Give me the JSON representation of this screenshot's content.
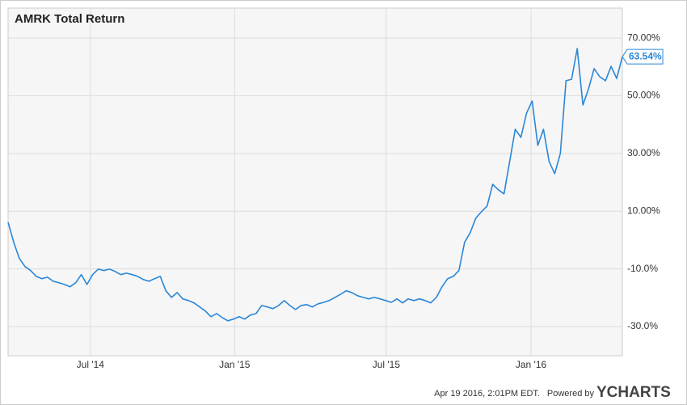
{
  "chart_data": {
    "type": "line",
    "title": "AMRK Total Return",
    "values": [
      6.2,
      -0.8,
      -6.4,
      -9.2,
      -10.6,
      -12.6,
      -13.4,
      -12.9,
      -14.3,
      -14.8,
      -15.4,
      -16.2,
      -14.8,
      -12,
      -15.4,
      -12,
      -10.1,
      -10.6,
      -10.1,
      -10.9,
      -12,
      -11.5,
      -12,
      -12.6,
      -13.7,
      -14.3,
      -13.4,
      -12.6,
      -17.6,
      -19.9,
      -18.2,
      -20.4,
      -21,
      -21.8,
      -23.2,
      -24.6,
      -26.6,
      -25.5,
      -26.9,
      -28,
      -27.4,
      -26.6,
      -27.4,
      -26,
      -25.5,
      -22.7,
      -23.2,
      -23.8,
      -22.7,
      -21,
      -22.7,
      -24.1,
      -22.7,
      -22.4,
      -23.2,
      -22.1,
      -21.6,
      -21,
      -19.9,
      -18.8,
      -17.6,
      -18.2,
      -19.3,
      -19.9,
      -20.4,
      -19.9,
      -20.4,
      -21,
      -21.6,
      -20.4,
      -21.8,
      -20.4,
      -21,
      -20.4,
      -21,
      -21.8,
      -19.9,
      -16.2,
      -13.4,
      -12.6,
      -10.6,
      -0.8,
      2.5,
      7.6,
      9.8,
      11.8,
      19.3,
      17.4,
      16,
      27.2,
      38.4,
      35.6,
      44,
      48.2,
      32.8,
      38.4,
      27.2,
      23,
      30,
      55.2,
      55.7,
      66.4,
      46.8,
      52.4,
      59.4,
      56.6,
      55.2,
      60.2,
      56,
      63.54
    ],
    "value_labels": [
      null,
      null,
      null,
      null,
      null,
      null,
      null,
      null,
      null,
      null,
      null,
      null,
      null,
      null,
      null,
      null,
      null,
      null,
      null,
      null,
      null,
      null,
      null,
      null,
      null,
      null,
      null,
      null,
      null,
      null,
      null,
      null,
      null,
      null,
      null,
      null,
      null,
      null,
      null,
      null,
      null,
      null,
      null,
      null,
      null,
      null,
      null,
      null,
      null,
      null,
      null,
      null,
      null,
      null,
      null,
      null,
      null,
      null,
      null,
      null,
      null,
      null,
      null,
      null,
      null,
      null,
      null,
      null,
      null,
      null,
      null,
      null,
      null,
      null,
      null,
      null,
      null,
      null,
      null,
      null,
      null,
      null,
      null,
      null,
      null,
      null,
      null,
      null,
      null,
      null,
      null,
      null,
      null,
      null,
      null,
      null,
      null,
      null,
      null,
      null,
      null,
      null,
      null,
      null,
      null,
      null,
      null,
      null,
      null,
      "63.54%"
    ],
    "color": "#2a87d8",
    "xlim": [
      0,
      109
    ],
    "xticks": [
      {
        "value": 14.6,
        "label": "Jul '14"
      },
      {
        "value": 40.2,
        "label": "Jan '15"
      },
      {
        "value": 67.1,
        "label": "Jul '15"
      },
      {
        "value": 92.8,
        "label": "Jan '16"
      }
    ],
    "ylim": [
      -40.1,
      80.4
    ],
    "yticks": [
      {
        "value": 70,
        "label": "70.00%"
      },
      {
        "value": 50,
        "label": "50.00%"
      },
      {
        "value": 30,
        "label": "30.00%"
      },
      {
        "value": 10,
        "label": "10.00%"
      },
      {
        "value": -10,
        "label": "-10.0%"
      },
      {
        "value": -30,
        "label": "-30.0%"
      }
    ],
    "grid": true
  },
  "footer": {
    "timestamp": "Apr 19 2016, 2:01PM EDT.",
    "powered": "Powered by",
    "logo": "YCHARTS"
  }
}
